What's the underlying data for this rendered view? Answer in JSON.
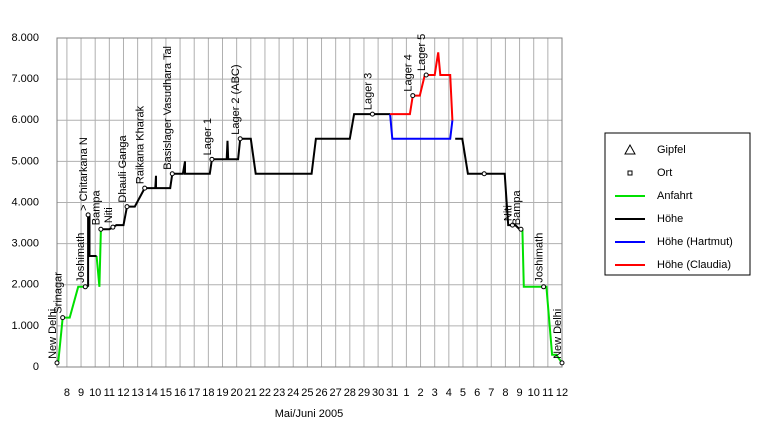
{
  "chart_data": {
    "type": "line",
    "xlabel": "Mai/Juni 2005",
    "xlim": [
      7.3,
      43
    ],
    "ylim": [
      0,
      8000
    ],
    "xticks": [
      8,
      9,
      10,
      11,
      12,
      13,
      14,
      15,
      16,
      17,
      18,
      19,
      20,
      21,
      22,
      23,
      24,
      25,
      26,
      27,
      28,
      29,
      30,
      31,
      {
        "value": 32,
        "label": "1"
      },
      {
        "value": 33,
        "label": "2"
      },
      {
        "value": 34,
        "label": "3"
      },
      {
        "value": 35,
        "label": "4"
      },
      {
        "value": 36,
        "label": "5"
      },
      {
        "value": 37,
        "label": "6"
      },
      {
        "value": 38,
        "label": "7"
      },
      {
        "value": 39,
        "label": "8"
      },
      {
        "value": 40,
        "label": "9"
      },
      {
        "value": 41,
        "label": "10"
      },
      {
        "value": 42,
        "label": "11"
      },
      {
        "value": 43,
        "label": "12"
      }
    ],
    "yticks": [
      0,
      {
        "value": 1000,
        "label": "1.000"
      },
      {
        "value": 2000,
        "label": "2.000"
      },
      {
        "value": 3000,
        "label": "3.000"
      },
      {
        "value": 4000,
        "label": "4.000"
      },
      {
        "value": 5000,
        "label": "5.000"
      },
      {
        "value": 6000,
        "label": "6.000"
      },
      {
        "value": 7000,
        "label": "7.000"
      },
      {
        "value": 8000,
        "label": "8.000"
      }
    ],
    "grid": true,
    "series": [
      {
        "name": "Gipfel",
        "marker": "triangle",
        "color": "#000000",
        "x": [],
        "values": []
      },
      {
        "name": "Ort",
        "marker": "square",
        "color": "#000000",
        "x": [
          7.3,
          7.7,
          9.3,
          9.5,
          10.4,
          11.25,
          12.25,
          13.5,
          15.45,
          18.25,
          20.25,
          29.6,
          32.45,
          33.4,
          37.5,
          39.5,
          40.1,
          41.7,
          43
        ],
        "values": [
          100,
          1200,
          1950,
          3700,
          3350,
          3400,
          3900,
          4350,
          4700,
          5050,
          5550,
          6150,
          6600,
          7100,
          4700,
          3450,
          3350,
          1950,
          100
        ],
        "labels": [
          "New Delhi",
          "Srinagar",
          "Joshimath",
          "> Chitarkana N",
          "Bampa",
          "Niti",
          "Dhauli Ganga",
          "Raikana Kharak",
          "Basislager Vasudhara Tal",
          "Lager 1",
          "Lager 2 (ABC)",
          "Lager 3",
          "Lager 4",
          "Lager 5",
          null,
          "Niti",
          "Bampa",
          "Joshimath",
          "New Delhi"
        ]
      },
      {
        "name": "Anfahrt",
        "color": "#00e000",
        "x": [
          7.3,
          7.4,
          7.7,
          8.2,
          8.8,
          9.3,
          9.5,
          null,
          10.1,
          10.3,
          10.4,
          10.55,
          null,
          40.2,
          40.3,
          41.7,
          41.9,
          42.3,
          42.6,
          43
        ],
        "values": [
          100,
          150,
          1200,
          1200,
          1950,
          1950,
          1950,
          null,
          2700,
          1950,
          3350,
          3350,
          null,
          3350,
          1950,
          1950,
          1950,
          300,
          300,
          100
        ]
      },
      {
        "name": "Höhe",
        "color": "#000000",
        "x": [
          9.5,
          9.5,
          9.6,
          9.6,
          10.1,
          null,
          10.55,
          11.0,
          11.25,
          11.5,
          12.0,
          12.25,
          12.8,
          13.5,
          14.25,
          14.3,
          14.3,
          15.3,
          15.45,
          16.2,
          16.35,
          16.35,
          18.1,
          18.25,
          19.3,
          19.35,
          19.4,
          20.1,
          20.25,
          21.0,
          21.35,
          25.3,
          25.6,
          28.0,
          28.3,
          30.85,
          null,
          35.45,
          35.95,
          36.35,
          38.95,
          39.2,
          39.7,
          40.0,
          40.2
        ],
        "values": [
          1950,
          3700,
          3700,
          2700,
          2700,
          null,
          3350,
          3350,
          3400,
          3450,
          3450,
          3900,
          3900,
          4350,
          4350,
          4650,
          4350,
          4350,
          4700,
          4700,
          5000,
          4700,
          4700,
          5050,
          5050,
          5500,
          5050,
          5050,
          5550,
          5550,
          4700,
          4700,
          5550,
          5550,
          6150,
          6150,
          null,
          5550,
          5550,
          4700,
          4700,
          3450,
          3450,
          3350,
          3350
        ]
      },
      {
        "name": "Höhe (Hartmut)",
        "color": "#0000ff",
        "x": [
          30.85,
          31.0,
          35.1,
          35.25
        ],
        "values": [
          6150,
          5550,
          5550,
          6000
        ]
      },
      {
        "name": "Höhe (Claudia)",
        "color": "#ff0000",
        "x": [
          30.85,
          32.25,
          32.45,
          32.95,
          33.3,
          34.0,
          34.25,
          34.4,
          35.1,
          35.25
        ],
        "values": [
          6150,
          6150,
          6600,
          6600,
          7100,
          7100,
          7650,
          7100,
          7100,
          6000
        ]
      }
    ]
  }
}
